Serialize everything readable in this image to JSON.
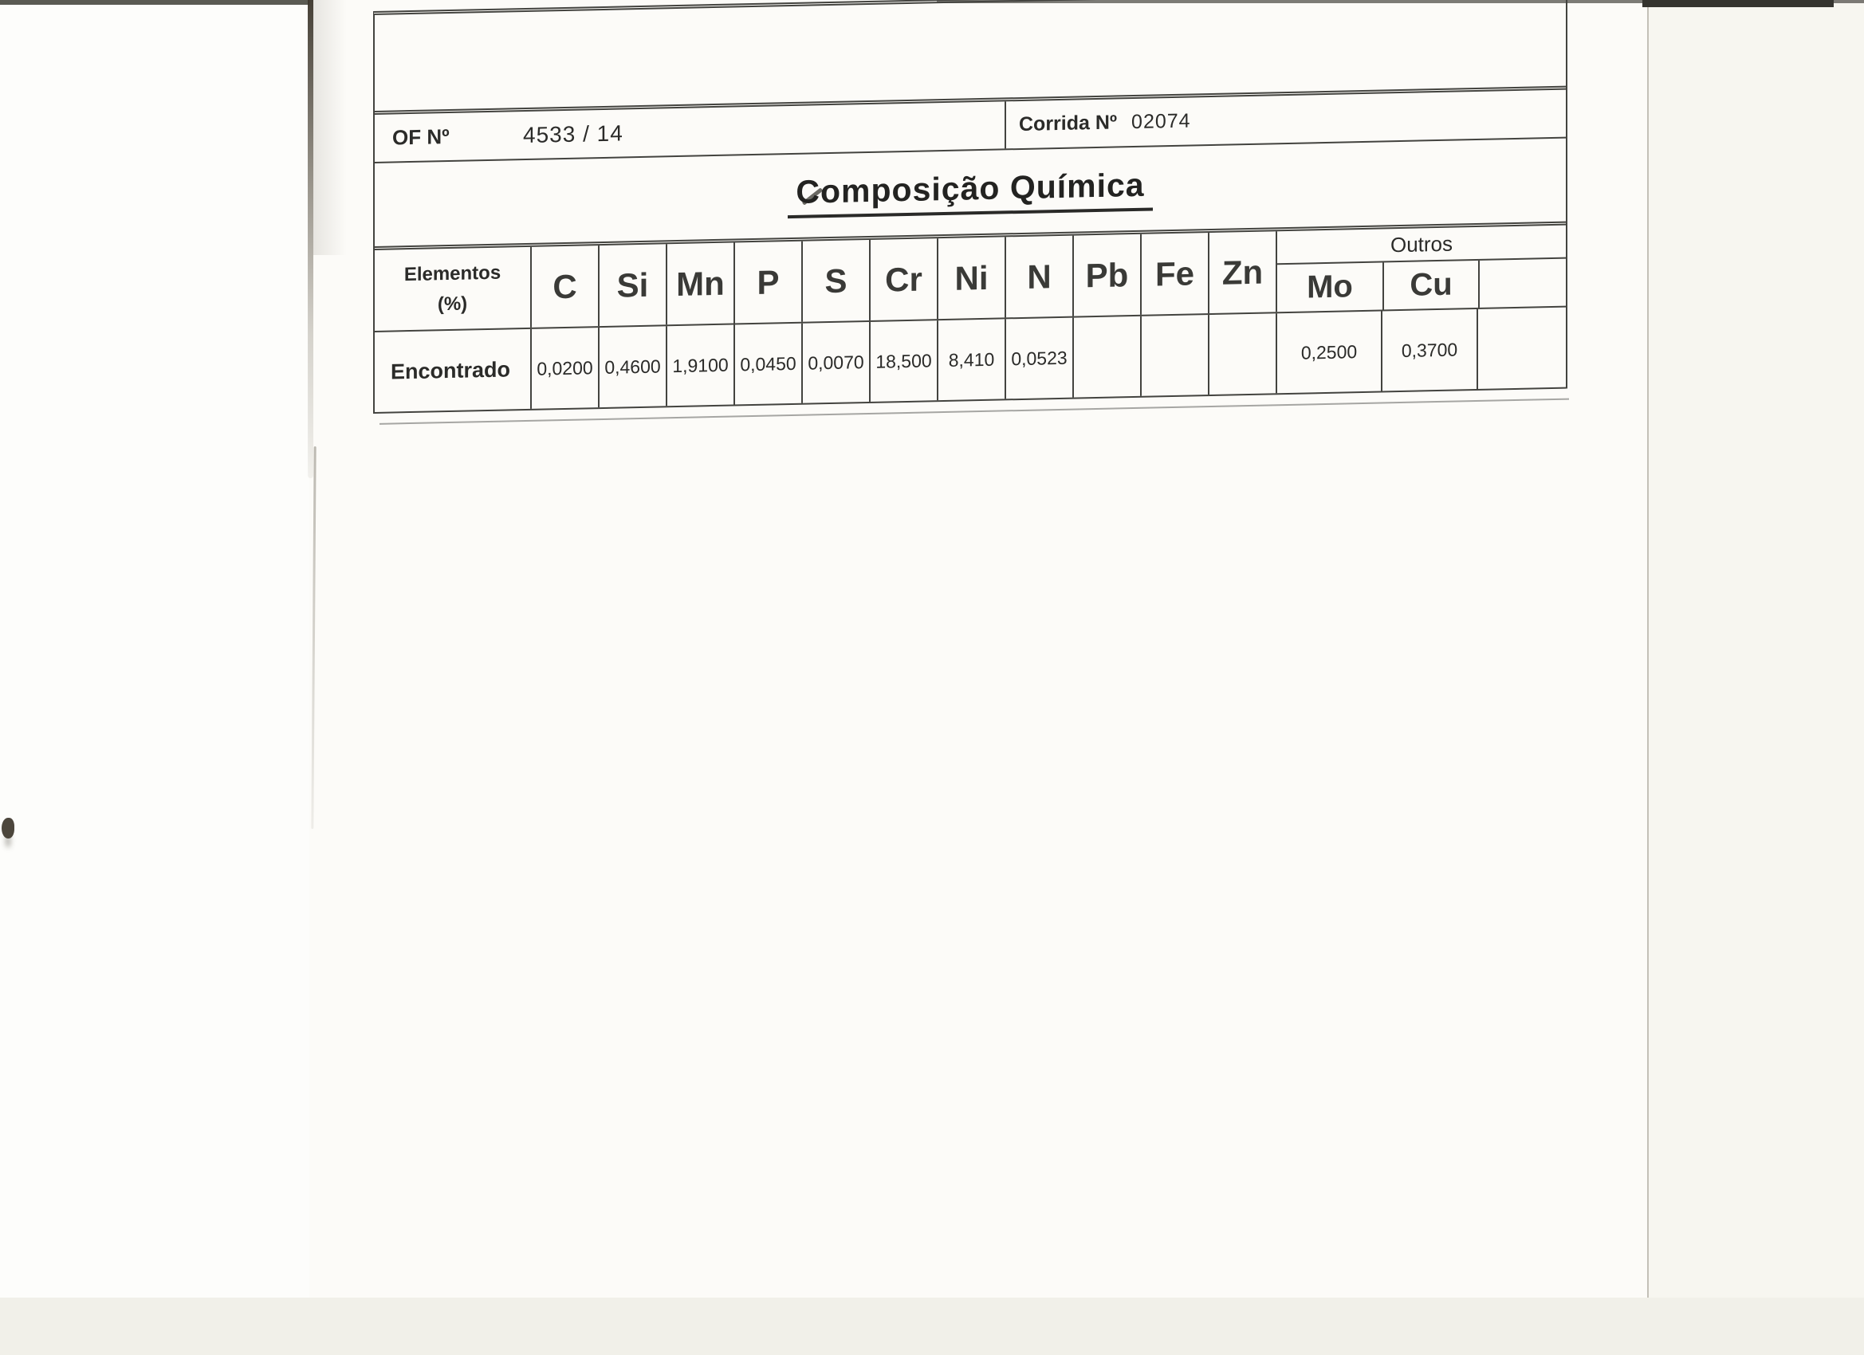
{
  "doc": {
    "of": {
      "label": "OF Nº",
      "value": "4533 / 14"
    },
    "corrida": {
      "label": "Corrida Nº",
      "value": "02074"
    },
    "title": "Composição Química",
    "elements_header": {
      "line1": "Elementos",
      "line2": "(%)"
    },
    "outros_label": "Outros",
    "row_label": "Encontrado",
    "columns": [
      {
        "symbol": "C",
        "found": "0,0200"
      },
      {
        "symbol": "Si",
        "found": "0,4600"
      },
      {
        "symbol": "Mn",
        "found": "1,9100"
      },
      {
        "symbol": "P",
        "found": "0,0450"
      },
      {
        "symbol": "S",
        "found": "0,0070"
      },
      {
        "symbol": "Cr",
        "found": "18,500"
      },
      {
        "symbol": "Ni",
        "found": "8,410"
      },
      {
        "symbol": "N",
        "found": "0,0523"
      },
      {
        "symbol": "Pb",
        "found": ""
      },
      {
        "symbol": "Fe",
        "found": ""
      },
      {
        "symbol": "Zn",
        "found": ""
      }
    ],
    "outros_columns": [
      {
        "symbol": "Mo",
        "found": "0,2500"
      },
      {
        "symbol": "Cu",
        "found": "0,3700"
      },
      {
        "symbol": "",
        "found": ""
      }
    ],
    "colors": {
      "ink": "#2b2b29",
      "line": "#43433f",
      "paper": "#fcfbf8"
    }
  }
}
